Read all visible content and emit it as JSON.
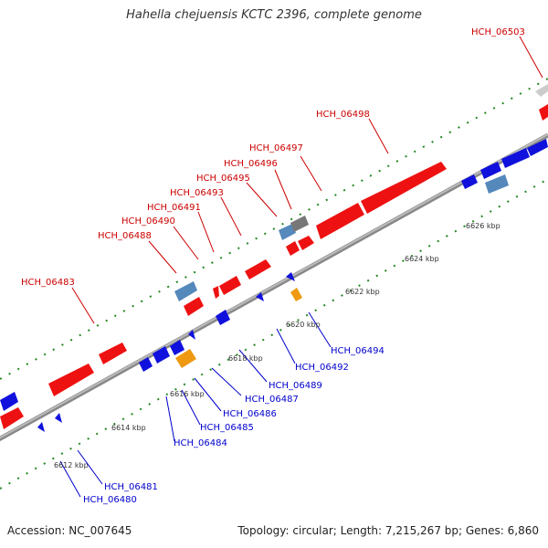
{
  "title": "Hahella chejuensis KCTC 2396, complete genome",
  "footer": {
    "accession": "Accession: NC_007645",
    "summary": "Topology: circular; Length: 7,215,267 bp; Genes: 6,860"
  },
  "colors": {
    "forward_gene": "#ee1111",
    "reverse_gene": "#1111dd",
    "steelblue_gene": "#5588bb",
    "gray_gene": "#777777",
    "orange_gene": "#ee9911",
    "lightgray_gene": "#cccccc",
    "backbone": "#999999",
    "tick_green": "#228822"
  },
  "kbp_labels": [
    "6612 kbp",
    "6614 kbp",
    "6616 kbp",
    "6618 kbp",
    "6620 kbp",
    "6622 kbp",
    "6624 kbp",
    "6626 kbp"
  ],
  "forward_labels": [
    "HCH_06503",
    "HCH_06498",
    "HCH_06497",
    "HCH_06496",
    "HCH_06495",
    "HCH_06493",
    "HCH_06491",
    "HCH_06490",
    "HCH_06488",
    "HCH_06483"
  ],
  "reverse_labels": [
    "HCH_06494",
    "HCH_06492",
    "HCH_06489",
    "HCH_06487",
    "HCH_06486",
    "HCH_06485",
    "HCH_06484",
    "HCH_06481",
    "HCH_06480"
  ]
}
